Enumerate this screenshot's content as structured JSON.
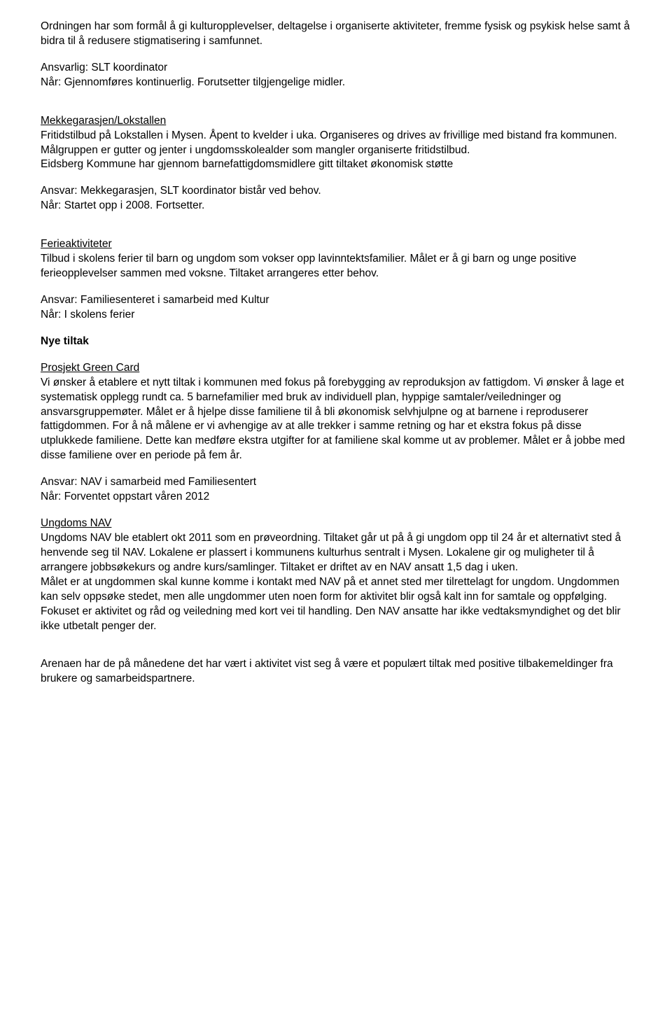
{
  "doc": {
    "p1": "Ordningen har som formål å gi kulturopplevelser, deltagelse i organiserte aktiviteter, fremme fysisk og psykisk helse samt å bidra til å redusere stigmatisering i samfunnet.",
    "p2a": "Ansvarlig: SLT koordinator",
    "p2b": "Når: Gjennomføres kontinuerlig. Forutsetter tilgjengelige midler.",
    "h1": "Mekkegarasjen/Lokstallen",
    "p3": "Fritidstilbud på Lokstallen i Mysen. Åpent to kvelder i uka. Organiseres og drives av frivillige med bistand fra kommunen.",
    "p4": "Målgruppen er gutter og jenter i ungdomsskolealder som mangler organiserte fritidstilbud.",
    "p5": "Eidsberg Kommune har gjennom barnefattigdomsmidlere gitt tiltaket økonomisk støtte",
    "p6a": "Ansvar: Mekkegarasjen, SLT koordinator bistår ved behov.",
    "p6b": "Når: Startet opp i 2008. Fortsetter.",
    "h2": "Ferieaktiviteter",
    "p7": "Tilbud i skolens ferier til barn og ungdom som vokser opp lavinntektsfamilier. Målet er å gi barn og unge positive ferieopplevelser sammen med voksne. Tiltaket arrangeres etter behov.",
    "p8a": "Ansvar: Familiesenteret i samarbeid med Kultur",
    "p8b": "Når: I skolens ferier",
    "h3": "Nye tiltak",
    "h4": "Prosjekt Green Card",
    "p9": "Vi ønsker å etablere et nytt tiltak i kommunen med fokus på forebygging av reproduksjon av fattigdom. Vi ønsker å lage et systematisk opplegg rundt ca. 5 barnefamilier med bruk av individuell plan, hyppige samtaler/veiledninger og ansvarsgruppemøter. Målet er å hjelpe disse familiene til å bli økonomisk selvhjulpne og at barnene i reproduserer fattigdommen. For å nå målene er vi avhengige av at alle trekker i samme retning og har et ekstra fokus på disse utplukkede familiene. Dette kan medføre ekstra utgifter for at familiene skal komme ut av problemer. Målet er å jobbe med disse familiene over en periode på fem år.",
    "p10a": "Ansvar: NAV i samarbeid med Familiesentert",
    "p10b": "Når: Forventet oppstart våren 2012",
    "h5": "Ungdoms NAV",
    "p11": "Ungdoms NAV ble etablert okt 2011 som en prøveordning. Tiltaket går ut på å gi ungdom opp til 24 år et alternativt sted å henvende seg til NAV. Lokalene er plassert i kommunens kulturhus sentralt i Mysen. Lokalene gir og muligheter til å arrangere jobbsøkekurs og andre kurs/samlinger. Tiltaket er driftet av en NAV ansatt 1,5 dag i uken.",
    "p12": "Målet er at ungdommen skal kunne komme i kontakt med NAV på et annet sted mer tilrettelagt for ungdom. Ungdommen kan selv oppsøke stedet, men alle ungdommer uten noen form for aktivitet blir også kalt inn for samtale og oppfølging.",
    "p13": "Fokuset er aktivitet og råd og veiledning med kort vei til handling. Den NAV ansatte har ikke vedtaksmyndighet og det blir ikke utbetalt penger der.",
    "p14": "Arenaen har de på månedene det har vært i aktivitet vist seg å være et populært tiltak med positive tilbakemeldinger fra brukere og samarbeidspartnere."
  }
}
